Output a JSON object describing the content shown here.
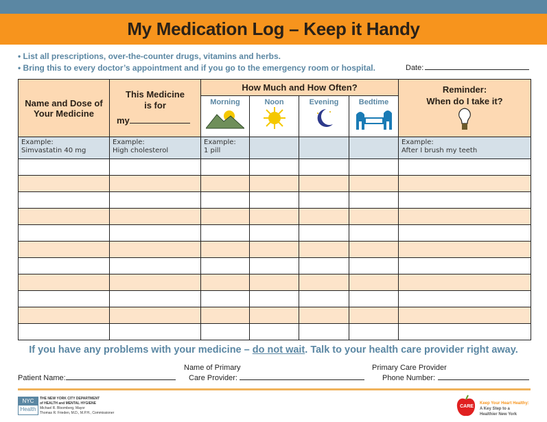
{
  "title": "My Medication Log – Keep it Handy",
  "bullets": [
    "• List all prescriptions, over-the-counter drugs, vitamins and herbs.",
    "• Bring this to every doctor’s appointment and if you go to the emergency room or hospital."
  ],
  "date_label": "Date:",
  "table": {
    "col_name": "Name and Dose of Your Medicine",
    "col_for_line1": "This Medicine",
    "col_for_line2": "is for",
    "col_for_my": "my",
    "col_how": "How Much and How Often?",
    "times": [
      "Morning",
      "Noon",
      "Evening",
      "Bedtime"
    ],
    "col_reminder_1": "Reminder:",
    "col_reminder_2": "When do I take it?",
    "example": {
      "name_label": "Example:",
      "name": "Simvastatin 40 mg",
      "for_label": "Example:",
      "for": "High cholesterol",
      "morning_label": "Example:",
      "morning": "1 pill",
      "reminder_label": "Example:",
      "reminder": "After I brush my teeth"
    }
  },
  "warning": {
    "pre": "If you have any problems with your medicine – ",
    "underline": "do not wait",
    "post": ".  Talk to your health care provider right away."
  },
  "fields": {
    "patient": "Patient Name:",
    "provider_1": "Name of Primary",
    "provider_2": "Care Provider:",
    "phone_1": "Primary Care Provider",
    "phone_2": "Phone Number:"
  },
  "logos": {
    "nyc_1": "NYC",
    "nyc_2": "Health",
    "dept": [
      "THE NEW YORK CITY DEPARTMENT",
      "of HEALTH and MENTAL HYGIENE",
      "Michael R. Bloomberg, Mayor",
      "Thomas R. Frieden, M.D., M.P.H., Commissioner"
    ],
    "nyc_url": "nyc.gov/health",
    "takecare": [
      "Keep Your Heart Healthy:",
      "A Key Step to a",
      "Healthier New York"
    ]
  },
  "colors": {
    "blue": "#5b87a3",
    "orange": "#f7941d",
    "peach": "#fde4ca",
    "example_blue": "#d5e0e8"
  }
}
